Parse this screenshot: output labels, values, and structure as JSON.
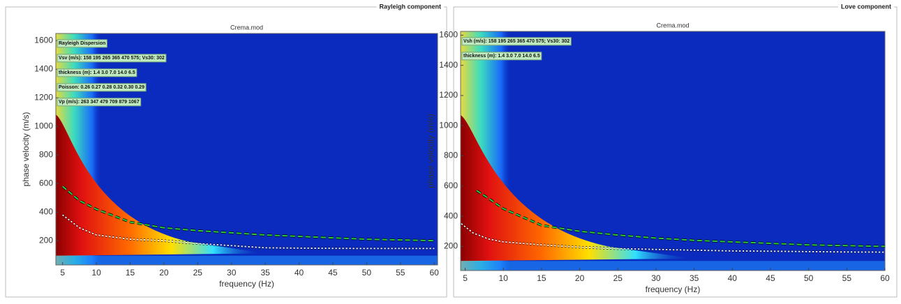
{
  "panels": [
    {
      "group_label": "Rayleigh component"
    },
    {
      "group_label": "Love component"
    }
  ],
  "chart_data": [
    {
      "type": "line",
      "subtitle": "Crema.mod",
      "x_label": "frequency (Hz)",
      "y_label": "phase velocity (m/s)",
      "xlim": [
        4,
        60.5
      ],
      "ylim": [
        30,
        1650
      ],
      "xticks": [
        5,
        10,
        15,
        20,
        25,
        30,
        35,
        40,
        45,
        50,
        55,
        60
      ],
      "yticks": [
        200,
        400,
        600,
        800,
        1000,
        1200,
        1400,
        1600
      ],
      "annotations": [
        "Rayleigh Dispersion",
        "Vsv (m/s): 158  195  265  365  470  575; Vs30: 302",
        "thickness (m): 1.4   3.0   7.0  14.0   6.5",
        "Poisson: 0.26  0.27  0.28  0.32  0.30  0.29",
        "Vp (m/s): 263  347  479  709  879 1067"
      ],
      "series": [
        {
          "color": "#2ecc40",
          "line_style": "dashed",
          "x": [
            5,
            7.5,
            10,
            15,
            20,
            25,
            30,
            35,
            40,
            45,
            50,
            55,
            60
          ],
          "values": [
            580,
            480,
            420,
            330,
            290,
            270,
            255,
            240,
            230,
            220,
            210,
            205,
            200
          ]
        },
        {
          "color": "#ffffff",
          "line_style": "dotted",
          "x": [
            5,
            7.5,
            10,
            15,
            20,
            25,
            30,
            35,
            40,
            45,
            50,
            55,
            60
          ],
          "values": [
            380,
            290,
            240,
            210,
            200,
            180,
            165,
            150,
            148,
            146,
            145,
            145,
            145
          ]
        }
      ]
    },
    {
      "type": "line",
      "subtitle": "Crema.mod",
      "x_label": "frequency (Hz)",
      "y_label": "phase velocity (m/s)",
      "xlim": [
        4.4,
        60
      ],
      "ylim": [
        40,
        1625
      ],
      "xticks": [
        5,
        10,
        15,
        20,
        25,
        30,
        35,
        40,
        45,
        50,
        55,
        60
      ],
      "yticks": [
        200,
        400,
        600,
        800,
        1000,
        1200,
        1400,
        1600
      ],
      "annotations": [
        "Vsh (m/s): 158  195  265  365  470  575; Vs30: 302",
        "thickness (m): 1.4   3.0   7.0  14.0   6.5"
      ],
      "series": [
        {
          "color": "#2ecc40",
          "line_style": "dashed",
          "x": [
            6.5,
            8,
            10,
            15,
            20,
            25,
            30,
            35,
            40,
            45,
            50,
            55,
            60
          ],
          "values": [
            570,
            520,
            450,
            340,
            300,
            275,
            255,
            240,
            230,
            220,
            210,
            205,
            200
          ]
        },
        {
          "color": "#ffffff",
          "line_style": "dotted",
          "x": [
            4.5,
            6,
            8,
            10,
            15,
            20,
            25,
            30,
            35,
            40,
            45,
            50,
            55,
            60
          ],
          "values": [
            350,
            290,
            250,
            230,
            210,
            195,
            185,
            180,
            175,
            170,
            168,
            165,
            163,
            162
          ]
        }
      ]
    }
  ]
}
